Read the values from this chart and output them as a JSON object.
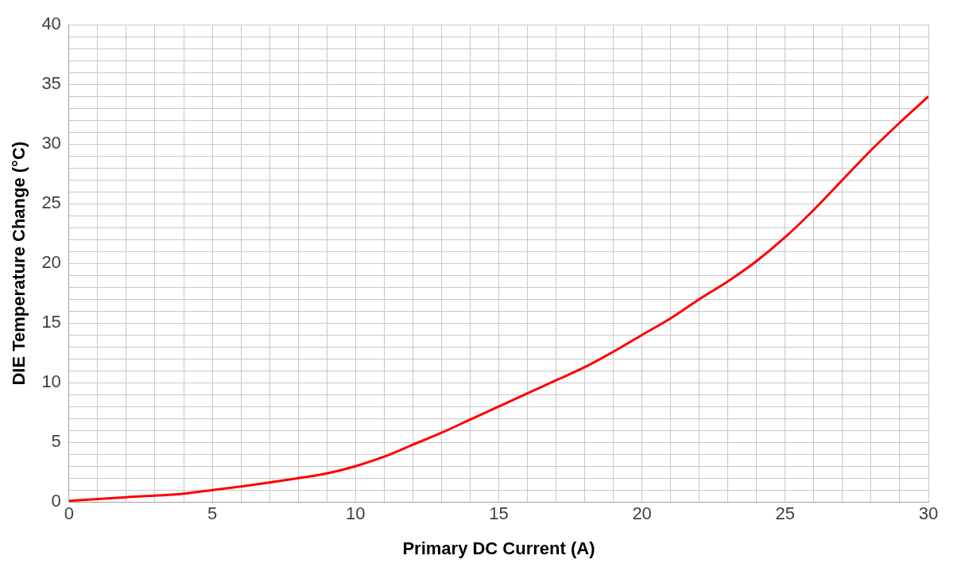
{
  "chart_data": {
    "type": "line",
    "xlabel": "Primary DC Current (A)",
    "ylabel": "DIE Temperature Change (°C)",
    "x": [
      0,
      2,
      4,
      5,
      6,
      8,
      9,
      10,
      11,
      12,
      13,
      14,
      15,
      16,
      17,
      18,
      19,
      20,
      21,
      22,
      23,
      24,
      25,
      26,
      27,
      28,
      29,
      30
    ],
    "series": [
      {
        "color": "#ff0000",
        "values": [
          0.1,
          0.4,
          0.7,
          1,
          1.3,
          2,
          2.4,
          3,
          3.8,
          4.8,
          5.8,
          6.9,
          8,
          9.1,
          10.2,
          11.3,
          12.6,
          14,
          15.4,
          17,
          18.5,
          20.2,
          22.2,
          24.5,
          27,
          29.5,
          31.8,
          34
        ]
      }
    ],
    "xlim": [
      0,
      30
    ],
    "xticks": [
      0,
      {
        "value": 1,
        "label": null
      },
      {
        "value": 2,
        "label": null
      },
      {
        "value": 3,
        "label": null
      },
      {
        "value": 4,
        "label": null
      },
      5,
      {
        "value": 6,
        "label": null
      },
      {
        "value": 7,
        "label": null
      },
      {
        "value": 8,
        "label": null
      },
      {
        "value": 9,
        "label": null
      },
      10,
      {
        "value": 11,
        "label": null
      },
      {
        "value": 12,
        "label": null
      },
      {
        "value": 13,
        "label": null
      },
      {
        "value": 14,
        "label": null
      },
      15,
      {
        "value": 16,
        "label": null
      },
      {
        "value": 17,
        "label": null
      },
      {
        "value": 18,
        "label": null
      },
      {
        "value": 19,
        "label": null
      },
      20,
      {
        "value": 21,
        "label": null
      },
      {
        "value": 22,
        "label": null
      },
      {
        "value": 23,
        "label": null
      },
      {
        "value": 24,
        "label": null
      },
      25,
      {
        "value": 26,
        "label": null
      },
      {
        "value": 27,
        "label": null
      },
      {
        "value": 28,
        "label": null
      },
      {
        "value": 29,
        "label": null
      },
      30
    ],
    "ylim": [
      0,
      40
    ],
    "yticks": [
      0,
      {
        "value": 1,
        "label": null
      },
      {
        "value": 2,
        "label": null
      },
      {
        "value": 3,
        "label": null
      },
      {
        "value": 4,
        "label": null
      },
      5,
      {
        "value": 6,
        "label": null
      },
      {
        "value": 7,
        "label": null
      },
      {
        "value": 8,
        "label": null
      },
      {
        "value": 9,
        "label": null
      },
      10,
      {
        "value": 11,
        "label": null
      },
      {
        "value": 12,
        "label": null
      },
      {
        "value": 13,
        "label": null
      },
      {
        "value": 14,
        "label": null
      },
      15,
      {
        "value": 16,
        "label": null
      },
      {
        "value": 17,
        "label": null
      },
      {
        "value": 18,
        "label": null
      },
      {
        "value": 19,
        "label": null
      },
      20,
      {
        "value": 21,
        "label": null
      },
      {
        "value": 22,
        "label": null
      },
      {
        "value": 23,
        "label": null
      },
      {
        "value": 24,
        "label": null
      },
      25,
      {
        "value": 26,
        "label": null
      },
      {
        "value": 27,
        "label": null
      },
      {
        "value": 28,
        "label": null
      },
      {
        "value": 29,
        "label": null
      },
      30,
      {
        "value": 31,
        "label": null
      },
      {
        "value": 32,
        "label": null
      },
      {
        "value": 33,
        "label": null
      },
      {
        "value": 34,
        "label": null
      },
      35,
      {
        "value": 36,
        "label": null
      },
      {
        "value": 37,
        "label": null
      },
      {
        "value": 38,
        "label": null
      },
      {
        "value": 39,
        "label": null
      },
      40
    ],
    "grid": true,
    "legend": false,
    "marker": "none",
    "line_style": "solid"
  }
}
